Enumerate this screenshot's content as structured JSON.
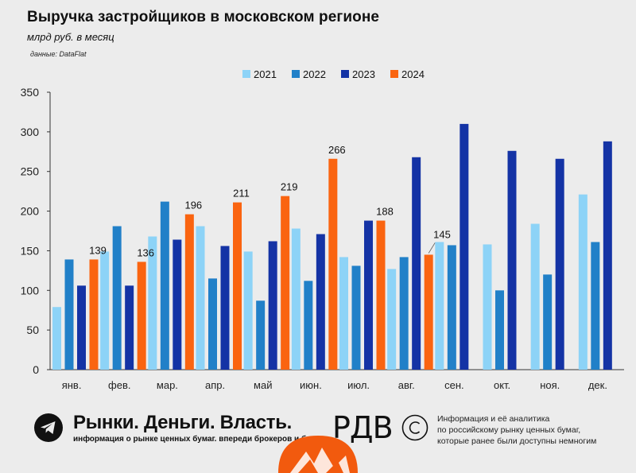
{
  "header": {
    "title": "Выручка застройщиков в московском регионе",
    "subtitle": "млрд руб. в месяц",
    "source": "данные: DataFlat"
  },
  "footer": {
    "brand": "Рынки. Деньги. Власть.",
    "tagline": "информация о рынке ценных бумаг. впереди брокеров и банков.",
    "logo": "РДВ",
    "info_lines": [
      "Информация и её аналитика",
      "по российскому рынку ценных бумаг,",
      "которые ранее были доступны немногим"
    ]
  },
  "colors": {
    "2021": "#8dd3f7",
    "2022": "#2180c8",
    "2023": "#1433a5",
    "2024": "#fa6410"
  },
  "icons": [
    "telegram-icon",
    "copyright-icon"
  ],
  "chart_data": {
    "type": "bar",
    "categories": [
      "янв.",
      "фев.",
      "мар.",
      "апр.",
      "май",
      "июн.",
      "июл.",
      "авг.",
      "сен.",
      "окт.",
      "ноя.",
      "дек."
    ],
    "series": [
      {
        "name": "2021",
        "values": [
          79,
          149,
          168,
          181,
          149,
          178,
          142,
          127,
          161,
          158,
          184,
          221
        ]
      },
      {
        "name": "2022",
        "values": [
          139,
          181,
          212,
          115,
          87,
          112,
          131,
          142,
          157,
          100,
          120,
          161
        ]
      },
      {
        "name": "2023",
        "values": [
          106,
          106,
          164,
          156,
          162,
          171,
          188,
          268,
          310,
          276,
          266,
          288
        ]
      },
      {
        "name": "2024",
        "values": [
          139,
          136,
          196,
          211,
          219,
          266,
          188,
          145,
          null,
          null,
          null,
          null
        ]
      }
    ],
    "data_labels": {
      "2024": [
        139,
        136,
        196,
        211,
        219,
        266,
        188,
        145
      ]
    },
    "ylim": [
      0,
      350
    ],
    "yticks": [
      0,
      50,
      100,
      150,
      200,
      250,
      300,
      350
    ],
    "legend": "top-center",
    "grid": false
  }
}
